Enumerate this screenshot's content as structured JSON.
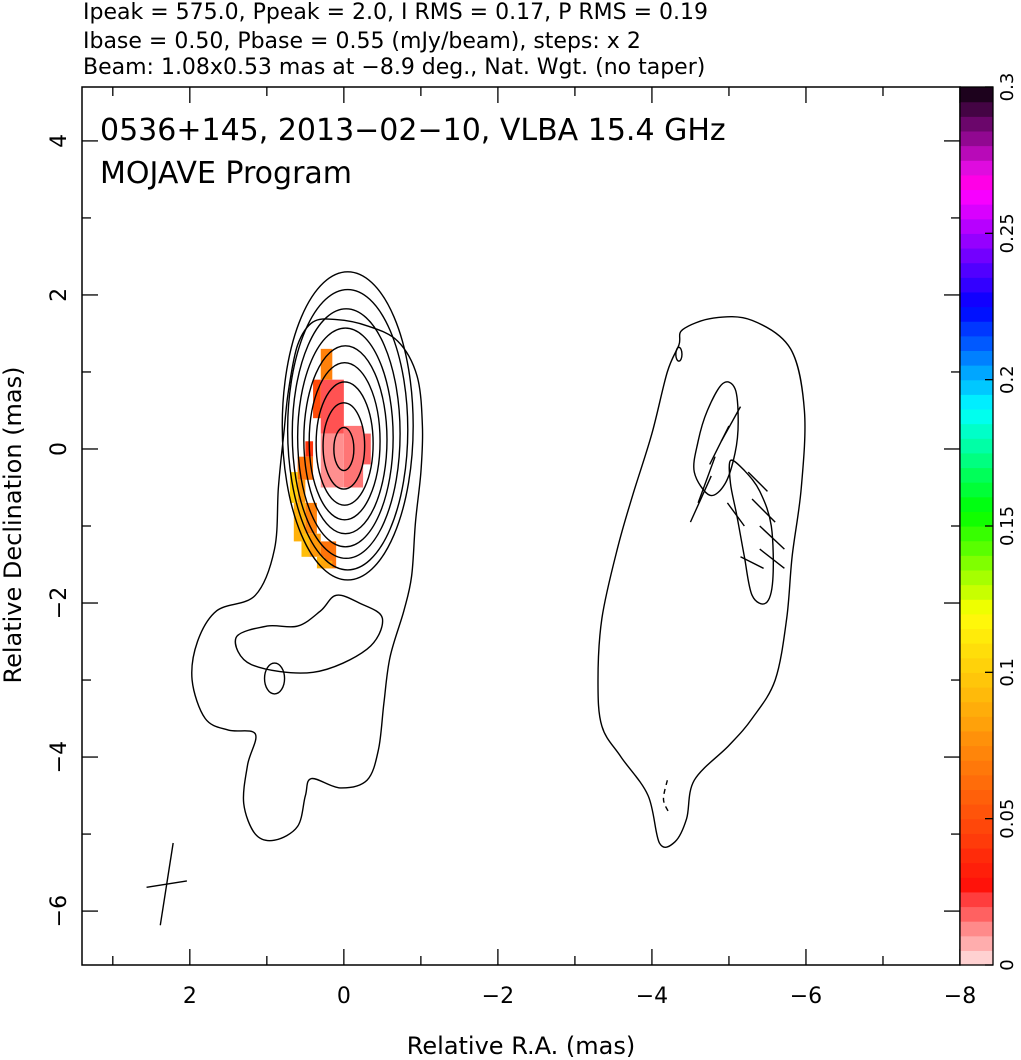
{
  "header": {
    "line1": "Ipeak = 575.0, Ppeak = 2.0, I RMS = 0.17, P RMS = 0.19",
    "line2": "Ibase = 0.50, Pbase = 0.55 (mJy/beam), steps: x 2",
    "line3": "Beam: 1.08x0.53 mas at −8.9 deg., Nat. Wgt. (no taper)"
  },
  "chart_data": {
    "type": "heatmap",
    "title": "0536+145, 2013−02−10, VLBA 15.4 GHz",
    "subtitle": "MOJAVE Program",
    "xlabel": "Relative R.A. (mas)",
    "ylabel": "Relative Declination (mas)",
    "xlim": [
      3.4,
      -8
    ],
    "ylim": [
      -6.7,
      4.7
    ],
    "x_ticks": [
      {
        "value": 2,
        "label": "2"
      },
      {
        "value": 0,
        "label": "0"
      },
      {
        "value": -2,
        "label": "−2"
      },
      {
        "value": -4,
        "label": "−4"
      },
      {
        "value": -6,
        "label": "−6"
      },
      {
        "value": -8,
        "label": "−8"
      }
    ],
    "y_ticks": [
      {
        "value": 4,
        "label": "4"
      },
      {
        "value": 2,
        "label": "2"
      },
      {
        "value": 0,
        "label": "0"
      },
      {
        "value": -2,
        "label": "−2"
      },
      {
        "value": -4,
        "label": "−4"
      },
      {
        "value": -6,
        "label": "−6"
      }
    ],
    "colorbar": {
      "range": [
        0,
        0.3
      ],
      "ticks": [
        {
          "value": 0,
          "label": "0"
        },
        {
          "value": 0.05,
          "label": "0.05"
        },
        {
          "value": 0.1,
          "label": "0.1"
        },
        {
          "value": 0.15,
          "label": "0.15"
        },
        {
          "value": 0.2,
          "label": "0.2"
        },
        {
          "value": 0.25,
          "label": "0.25"
        },
        {
          "value": 0.3,
          "label": "0.3"
        }
      ]
    },
    "contours": {
      "core_ellipses": [
        {
          "cx": -0.05,
          "cy": 0.3,
          "rx": 0.85,
          "ry": 2.0
        },
        {
          "cx": -0.05,
          "cy": 0.25,
          "rx": 0.78,
          "ry": 1.82
        },
        {
          "cx": -0.03,
          "cy": 0.2,
          "rx": 0.7,
          "ry": 1.62
        },
        {
          "cx": -0.02,
          "cy": 0.15,
          "rx": 0.62,
          "ry": 1.42
        },
        {
          "cx": -0.02,
          "cy": 0.12,
          "rx": 0.54,
          "ry": 1.22
        },
        {
          "cx": -0.01,
          "cy": 0.1,
          "rx": 0.46,
          "ry": 1.02
        },
        {
          "cx": -0.01,
          "cy": 0.07,
          "rx": 0.37,
          "ry": 0.8
        },
        {
          "cx": 0.0,
          "cy": 0.04,
          "rx": 0.27,
          "ry": 0.56
        },
        {
          "cx": 0.0,
          "cy": 0.0,
          "rx": 0.13,
          "ry": 0.28
        }
      ],
      "south_component": [
        [
          0.6,
          -2.3
        ],
        [
          0.3,
          -2.1
        ],
        [
          0.1,
          -1.9
        ],
        [
          -0.2,
          -2.0
        ],
        [
          -0.5,
          -2.2
        ],
        [
          -0.3,
          -2.6
        ],
        [
          0.4,
          -2.9
        ],
        [
          1.2,
          -2.8
        ],
        [
          1.4,
          -2.45
        ],
        [
          1.0,
          -2.3
        ]
      ],
      "outer_left": [
        [
          0.4,
          1.65
        ],
        [
          0.1,
          1.68
        ],
        [
          -0.3,
          1.6
        ],
        [
          -0.7,
          1.4
        ],
        [
          -0.95,
          0.95
        ],
        [
          -1.02,
          0.3
        ],
        [
          -1.0,
          -0.3
        ],
        [
          -0.93,
          -0.95
        ],
        [
          -0.88,
          -1.65
        ],
        [
          -0.78,
          -2.1
        ],
        [
          -0.6,
          -2.7
        ],
        [
          -0.52,
          -3.3
        ],
        [
          -0.45,
          -3.9
        ],
        [
          -0.3,
          -4.3
        ],
        [
          0.05,
          -4.4
        ],
        [
          0.42,
          -4.28
        ],
        [
          0.5,
          -4.5
        ],
        [
          0.6,
          -4.9
        ],
        [
          0.9,
          -5.08
        ],
        [
          1.15,
          -5.0
        ],
        [
          1.3,
          -4.6
        ],
        [
          1.25,
          -4.1
        ],
        [
          1.15,
          -3.7
        ],
        [
          1.5,
          -3.65
        ],
        [
          1.8,
          -3.5
        ],
        [
          1.97,
          -3.0
        ],
        [
          1.9,
          -2.5
        ],
        [
          1.65,
          -2.1
        ],
        [
          1.15,
          -1.9
        ],
        [
          0.9,
          -1.3
        ],
        [
          0.85,
          -0.5
        ],
        [
          0.78,
          0.2
        ],
        [
          0.72,
          0.75
        ],
        [
          0.6,
          1.35
        ]
      ],
      "knot_ellipse": {
        "cx": 0.9,
        "cy": -2.98,
        "rx": 0.13,
        "ry": 0.2
      },
      "outer_right": [
        [
          -4.4,
          1.55
        ],
        [
          -4.8,
          1.7
        ],
        [
          -5.3,
          1.67
        ],
        [
          -5.8,
          1.3
        ],
        [
          -5.98,
          0.5
        ],
        [
          -5.94,
          -0.5
        ],
        [
          -5.82,
          -1.4
        ],
        [
          -5.75,
          -2.2
        ],
        [
          -5.6,
          -3.0
        ],
        [
          -5.3,
          -3.5
        ],
        [
          -5.0,
          -3.85
        ],
        [
          -4.55,
          -4.3
        ],
        [
          -4.45,
          -4.8
        ],
        [
          -4.3,
          -5.1
        ],
        [
          -4.1,
          -5.12
        ],
        [
          -3.95,
          -4.5
        ],
        [
          -3.6,
          -4.0
        ],
        [
          -3.35,
          -3.6
        ],
        [
          -3.3,
          -3.0
        ],
        [
          -3.35,
          -2.2
        ],
        [
          -3.55,
          -1.3
        ],
        [
          -3.75,
          -0.6
        ],
        [
          -4.0,
          0.2
        ],
        [
          -4.2,
          1.0
        ],
        [
          -4.35,
          1.35
        ]
      ],
      "inner_right_a": [
        [
          -4.55,
          -0.3
        ],
        [
          -4.6,
          0.1
        ],
        [
          -4.72,
          0.5
        ],
        [
          -4.92,
          0.85
        ],
        [
          -5.08,
          0.78
        ],
        [
          -5.12,
          0.35
        ],
        [
          -5.08,
          -0.05
        ],
        [
          -4.95,
          -0.45
        ],
        [
          -4.75,
          -0.6
        ]
      ],
      "inner_right_b": [
        [
          -5.02,
          -0.15
        ],
        [
          -5.2,
          -0.28
        ],
        [
          -5.4,
          -0.55
        ],
        [
          -5.55,
          -1.0
        ],
        [
          -5.57,
          -1.7
        ],
        [
          -5.48,
          -2.0
        ],
        [
          -5.3,
          -1.9
        ],
        [
          -5.2,
          -1.4
        ],
        [
          -5.1,
          -0.85
        ],
        [
          -5.02,
          -0.45
        ]
      ],
      "mini_loop": {
        "cx": -4.35,
        "cy": 1.23,
        "rx": 0.04,
        "ry": 0.09
      },
      "dashed_small": [
        [
          -4.2,
          -4.3
        ],
        [
          -4.15,
          -4.55
        ],
        [
          -4.22,
          -4.72
        ]
      ]
    },
    "polarization_pixels": [
      {
        "x0": 0.0,
        "x1": 0.3,
        "y0": 0.2,
        "y1": 0.9,
        "value": 0.02
      },
      {
        "x0": -0.25,
        "x1": 0.0,
        "y0": -0.5,
        "y1": 0.3,
        "value": 0.015
      },
      {
        "x0": 0.0,
        "x1": 0.3,
        "y0": -0.5,
        "y1": 0.2,
        "value": 0.012
      },
      {
        "x0": -0.35,
        "x1": -0.25,
        "y0": -0.2,
        "y1": 0.2,
        "value": 0.018
      },
      {
        "x0": 0.15,
        "x1": 0.3,
        "y0": 0.9,
        "y1": 1.3,
        "value": 0.07
      },
      {
        "x0": 0.3,
        "x1": 0.4,
        "y0": 0.4,
        "y1": 0.9,
        "value": 0.05
      },
      {
        "x0": 0.4,
        "x1": 0.5,
        "y0": -0.1,
        "y1": 0.1,
        "value": 0.04
      },
      {
        "x0": 0.4,
        "x1": 0.6,
        "y0": -0.4,
        "y1": -0.1,
        "value": 0.065
      },
      {
        "x0": 0.5,
        "x1": 0.6,
        "y0": -0.7,
        "y1": -0.4,
        "value": 0.08
      },
      {
        "x0": 0.6,
        "x1": 0.7,
        "y0": -0.7,
        "y1": -0.3,
        "value": 0.1
      },
      {
        "x0": 0.35,
        "x1": 0.5,
        "y0": -1.1,
        "y1": -0.7,
        "value": 0.07
      },
      {
        "x0": 0.5,
        "x1": 0.65,
        "y0": -1.2,
        "y1": -0.7,
        "value": 0.09
      },
      {
        "x0": 0.3,
        "x1": 0.45,
        "y0": -1.4,
        "y1": -1.1,
        "value": 0.08
      },
      {
        "x0": 0.45,
        "x1": 0.55,
        "y0": -1.4,
        "y1": -1.1,
        "value": 0.095
      },
      {
        "x0": 0.1,
        "x1": 0.3,
        "y0": -1.55,
        "y1": -1.2,
        "value": 0.065
      },
      {
        "x0": 0.25,
        "x1": 0.35,
        "y0": -1.55,
        "y1": -1.4,
        "value": 0.09
      },
      {
        "x0": 0.15,
        "x1": 0.3,
        "y0": -1.55,
        "y1": -1.45,
        "value": 0.085
      }
    ],
    "evpa_vectors": [
      {
        "x1": -4.5,
        "y1": -0.95,
        "x2": -4.77,
        "y2": -0.35
      },
      {
        "x1": -4.6,
        "y1": -0.7,
        "x2": -4.82,
        "y2": -0.1
      },
      {
        "x1": -4.75,
        "y1": -0.2,
        "x2": -5.0,
        "y2": 0.3
      },
      {
        "x1": -4.9,
        "y1": 0.1,
        "x2": -5.15,
        "y2": 0.55
      },
      {
        "x1": -5.25,
        "y1": -0.3,
        "x2": -5.5,
        "y2": -0.55
      },
      {
        "x1": -5.3,
        "y1": -0.65,
        "x2": -5.6,
        "y2": -0.95
      },
      {
        "x1": -5.4,
        "y1": -1.0,
        "x2": -5.72,
        "y2": -1.3
      },
      {
        "x1": -5.4,
        "y1": -1.3,
        "x2": -5.72,
        "y2": -1.55
      },
      {
        "x1": -4.98,
        "y1": -0.7,
        "x2": -5.2,
        "y2": -1.0
      },
      {
        "x1": -5.15,
        "y1": -1.4,
        "x2": -5.45,
        "y2": -1.55
      }
    ],
    "beam": {
      "cx": 2.3,
      "cy": -5.65,
      "major": 1.08,
      "minor": 0.53,
      "pa_deg": -8.9
    }
  }
}
